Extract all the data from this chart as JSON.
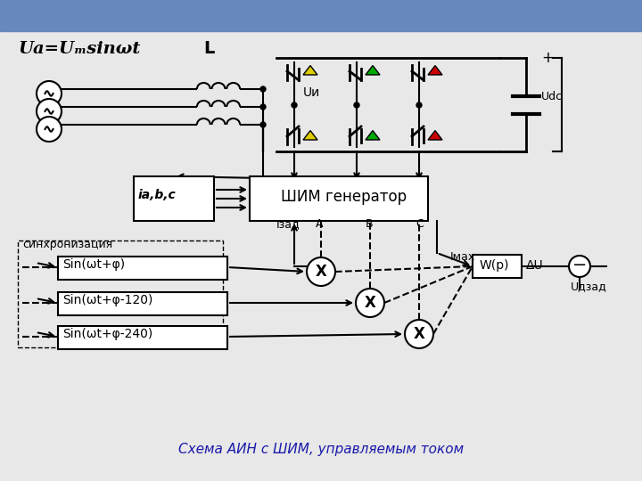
{
  "bg_color": "#f0f0f0",
  "title_color": "#1a1aaa",
  "title_text": "Схема АИН с ШИМ, управляемым током",
  "formula_text": "Uа=Uₘsinωt",
  "label_L": "L",
  "label_Ui": "Uи",
  "label_Udc": "Udc",
  "label_shim": "ШИМ генератор",
  "label_ia": "iа,b,c",
  "label_sinhr": "синхронизация",
  "label_sin1": "Sin(ωt+φ)",
  "label_sin2": "Sin(ωt+φ-120)",
  "label_sin3": "Sin(ωt+φ-240)",
  "label_Izad": "Iзад",
  "label_A": "A",
  "label_B": "B",
  "label_C": "C",
  "label_Imax": "Iмах",
  "label_Wp": "W(p)",
  "label_dU": "ΔU",
  "label_Udzad": "Uдзад",
  "label_plus": "+",
  "label_minus": "-"
}
